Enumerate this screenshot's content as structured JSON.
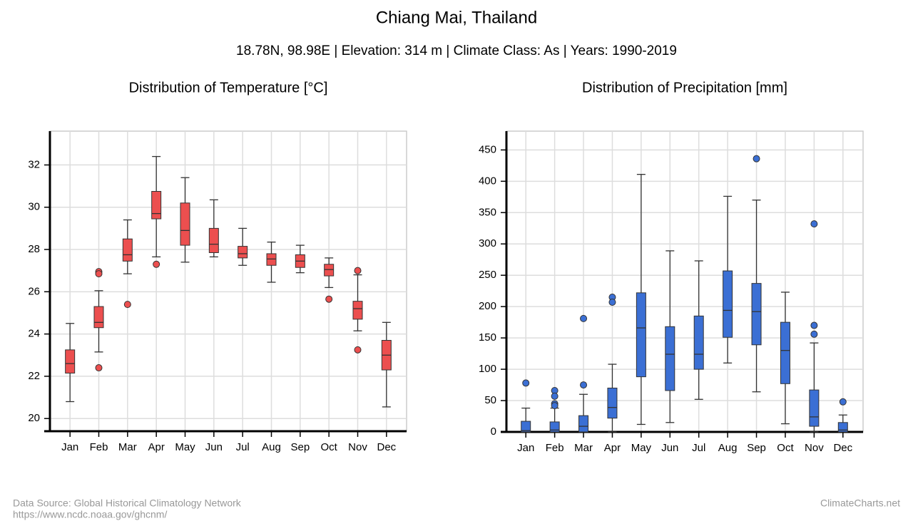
{
  "title": "Chiang Mai, Thailand",
  "subtitle": "18.78N, 98.98E | Elevation: 314 m | Climate Class: As | Years: 1990-2019",
  "source": "Data Source: Global Historical Climatology Network",
  "url": "https://www.ncdc.noaa.gov/ghcnm/",
  "brand": "ClimateCharts.net",
  "chart_data": [
    {
      "type": "box",
      "title": "Distribution of Temperature [°C]",
      "color": "#ec4f4f",
      "grid": true,
      "categories": [
        "Jan",
        "Feb",
        "Mar",
        "Apr",
        "May",
        "Jun",
        "Jul",
        "Aug",
        "Sep",
        "Oct",
        "Nov",
        "Dec"
      ],
      "ylim": [
        19.4,
        33.6
      ],
      "yticks": [
        20,
        22,
        24,
        26,
        28,
        30,
        32
      ],
      "boxes": [
        {
          "low": 20.8,
          "q1": 22.15,
          "median": 22.6,
          "q3": 23.25,
          "high": 24.5,
          "outliers": []
        },
        {
          "low": 23.15,
          "q1": 24.3,
          "median": 24.55,
          "q3": 25.3,
          "high": 26.05,
          "outliers": [
            26.95,
            26.85,
            22.4
          ]
        },
        {
          "low": 26.85,
          "q1": 27.45,
          "median": 27.75,
          "q3": 28.5,
          "high": 29.4,
          "outliers": [
            25.4
          ]
        },
        {
          "low": 27.65,
          "q1": 29.45,
          "median": 29.7,
          "q3": 30.75,
          "high": 32.4,
          "outliers": [
            27.3
          ]
        },
        {
          "low": 27.4,
          "q1": 28.2,
          "median": 28.9,
          "q3": 30.2,
          "high": 31.4,
          "outliers": []
        },
        {
          "low": 27.65,
          "q1": 27.85,
          "median": 28.25,
          "q3": 29,
          "high": 30.35,
          "outliers": []
        },
        {
          "low": 27.25,
          "q1": 27.6,
          "median": 27.8,
          "q3": 28.15,
          "high": 29,
          "outliers": []
        },
        {
          "low": 26.45,
          "q1": 27.25,
          "median": 27.55,
          "q3": 27.8,
          "high": 28.35,
          "outliers": []
        },
        {
          "low": 26.9,
          "q1": 27.15,
          "median": 27.45,
          "q3": 27.75,
          "high": 28.2,
          "outliers": []
        },
        {
          "low": 26.2,
          "q1": 26.75,
          "median": 27.05,
          "q3": 27.3,
          "high": 27.6,
          "outliers": [
            25.65
          ]
        },
        {
          "low": 24.15,
          "q1": 24.7,
          "median": 25.2,
          "q3": 25.55,
          "high": 26.8,
          "outliers": [
            27,
            23.25
          ]
        },
        {
          "low": 20.55,
          "q1": 22.3,
          "median": 23,
          "q3": 23.7,
          "high": 24.55,
          "outliers": []
        }
      ]
    },
    {
      "type": "box",
      "title": "Distribution of Precipitation [mm]",
      "color": "#3b6fd4",
      "grid": true,
      "categories": [
        "Jan",
        "Feb",
        "Mar",
        "Apr",
        "May",
        "Jun",
        "Jul",
        "Aug",
        "Sep",
        "Oct",
        "Nov",
        "Dec"
      ],
      "ylim": [
        0,
        480
      ],
      "yticks": [
        0,
        50,
        100,
        150,
        200,
        250,
        300,
        350,
        400,
        450
      ],
      "boxes": [
        {
          "low": 0,
          "q1": 0,
          "median": 2,
          "q3": 17,
          "high": 38,
          "outliers": [
            78
          ]
        },
        {
          "low": 0,
          "q1": 0,
          "median": 3,
          "q3": 16,
          "high": 38,
          "outliers": [
            66,
            57,
            45,
            42
          ]
        },
        {
          "low": 0,
          "q1": 0,
          "median": 9,
          "q3": 26,
          "high": 60,
          "outliers": [
            181,
            75
          ]
        },
        {
          "low": 0,
          "q1": 22,
          "median": 39,
          "q3": 70,
          "high": 108,
          "outliers": [
            215,
            207
          ]
        },
        {
          "low": 12,
          "q1": 88,
          "median": 166,
          "q3": 222,
          "high": 411,
          "outliers": []
        },
        {
          "low": 15,
          "q1": 66,
          "median": 124,
          "q3": 168,
          "high": 289,
          "outliers": []
        },
        {
          "low": 52,
          "q1": 100,
          "median": 124,
          "q3": 185,
          "high": 273,
          "outliers": []
        },
        {
          "low": 110,
          "q1": 151,
          "median": 194,
          "q3": 257,
          "high": 376,
          "outliers": []
        },
        {
          "low": 64,
          "q1": 139,
          "median": 192,
          "q3": 237,
          "high": 370,
          "outliers": [
            436
          ]
        },
        {
          "low": 13,
          "q1": 77,
          "median": 130,
          "q3": 175,
          "high": 223,
          "outliers": []
        },
        {
          "low": 0,
          "q1": 9,
          "median": 24,
          "q3": 67,
          "high": 142,
          "outliers": [
            332,
            170,
            156
          ]
        },
        {
          "low": 0,
          "q1": 0,
          "median": 3,
          "q3": 15,
          "high": 27,
          "outliers": [
            48
          ]
        }
      ]
    }
  ]
}
